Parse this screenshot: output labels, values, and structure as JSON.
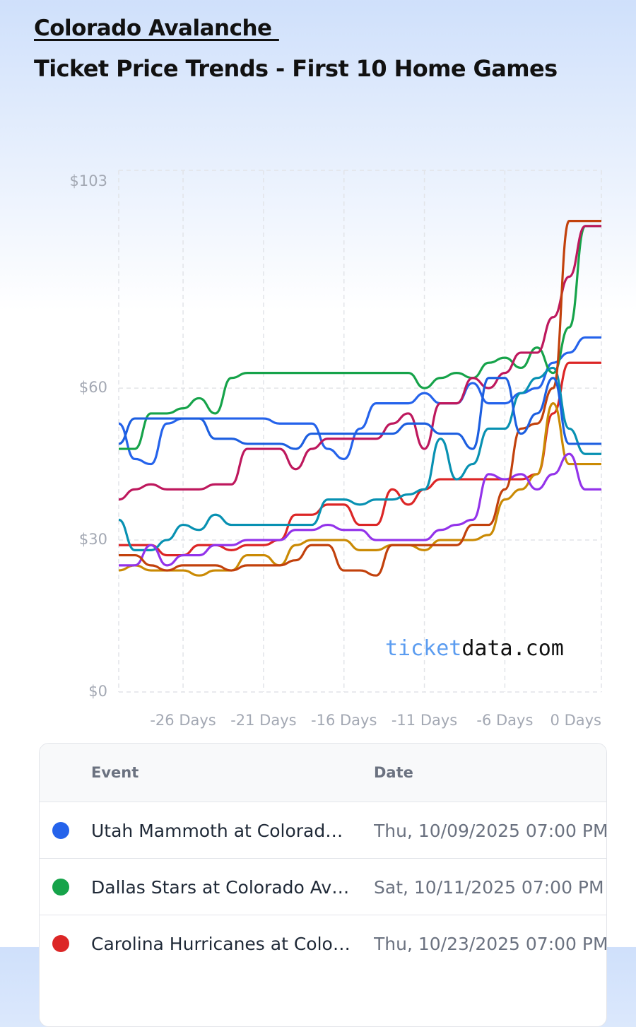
{
  "header": {
    "team": "Colorado Avalanche ",
    "subtitle": "Ticket Price Trends - First 10 Home Games"
  },
  "chart_data": {
    "type": "line",
    "watermark": [
      "ticket",
      "data.com"
    ],
    "x": [
      -30,
      -29,
      -28,
      -27,
      -26,
      -25,
      -24,
      -23,
      -22,
      -21,
      -20,
      -19,
      -18,
      -17,
      -16,
      -15,
      -14,
      -13,
      -12,
      -11,
      -10,
      -9,
      -8,
      -7,
      -6,
      -5,
      -4,
      -3,
      -2,
      -1,
      0
    ],
    "xlim": [
      -30,
      0
    ],
    "xticks": [
      {
        "value": -26,
        "label": "-26 Days"
      },
      {
        "value": -21,
        "label": "-21 Days"
      },
      {
        "value": -16,
        "label": "-16 Days"
      },
      {
        "value": -11,
        "label": "-11 Days"
      },
      {
        "value": -6,
        "label": "-6 Days"
      },
      {
        "value": 0,
        "label": "0 Days"
      }
    ],
    "ylim": [
      0,
      103
    ],
    "yticks": [
      {
        "value": 0,
        "label": "$0"
      },
      {
        "value": 30,
        "label": "$30"
      },
      {
        "value": 60,
        "label": "$60"
      },
      {
        "value": 103,
        "label": "$103"
      }
    ],
    "grid": true,
    "series": [
      {
        "name": "Utah Mammoth at Colorad…",
        "color": "#2563eb",
        "values": [
          53,
          46,
          45,
          53,
          54,
          54,
          54,
          54,
          54,
          54,
          53,
          53,
          53,
          48,
          46,
          52,
          57,
          57,
          57,
          59,
          57,
          57,
          61,
          57,
          57,
          59,
          60,
          65,
          67,
          70,
          70
        ]
      },
      {
        "name": "Dallas Stars at Colorado Av…",
        "color": "#16a34a",
        "values": [
          48,
          48,
          55,
          55,
          56,
          58,
          55,
          62,
          63,
          63,
          63,
          63,
          63,
          63,
          63,
          63,
          63,
          63,
          63,
          60,
          62,
          63,
          62,
          65,
          66,
          64,
          68,
          63,
          72,
          92,
          92
        ]
      },
      {
        "name": "Carolina Hurricanes at Colo…",
        "color": "#dc2626",
        "values": [
          29,
          29,
          29,
          27,
          27,
          29,
          29,
          28,
          29,
          29,
          30,
          35,
          35,
          37,
          37,
          33,
          33,
          40,
          37,
          40,
          42,
          42,
          42,
          42,
          42,
          42,
          43,
          55,
          65,
          65,
          65
        ]
      },
      {
        "color": "#be185d",
        "values": [
          38,
          40,
          41,
          40,
          40,
          40,
          41,
          41,
          48,
          48,
          48,
          44,
          48,
          50,
          50,
          50,
          50,
          53,
          55,
          48,
          57,
          57,
          62,
          60,
          63,
          67,
          67,
          74,
          82,
          92,
          92
        ]
      },
      {
        "color": "#0891b2",
        "values": [
          34,
          28,
          28,
          30,
          33,
          32,
          35,
          33,
          33,
          33,
          33,
          33,
          33,
          38,
          38,
          37,
          38,
          38,
          39,
          40,
          50,
          42,
          45,
          52,
          52,
          59,
          62,
          64,
          52,
          47,
          47
        ]
      },
      {
        "color": "#ca8a04",
        "values": [
          24,
          25,
          24,
          24,
          24,
          23,
          24,
          24,
          27,
          27,
          25,
          29,
          30,
          30,
          30,
          28,
          28,
          29,
          29,
          28,
          30,
          30,
          30,
          31,
          38,
          40,
          43,
          57,
          45,
          45,
          45
        ]
      },
      {
        "color": "#9333ea",
        "values": [
          25,
          25,
          29,
          25,
          27,
          27,
          29,
          29,
          30,
          30,
          30,
          32,
          32,
          33,
          32,
          32,
          30,
          30,
          30,
          30,
          32,
          33,
          34,
          43,
          42,
          43,
          40,
          43,
          47,
          40,
          40
        ]
      },
      {
        "color": "#c2410c",
        "values": [
          27,
          27,
          25,
          24,
          25,
          25,
          25,
          24,
          25,
          25,
          25,
          26,
          29,
          29,
          24,
          24,
          23,
          29,
          29,
          29,
          29,
          29,
          33,
          33,
          40,
          52,
          53,
          60,
          93,
          93,
          93
        ]
      },
      {
        "color": "#1d5fe0",
        "values": [
          49,
          54,
          54,
          54,
          54,
          54,
          50,
          50,
          49,
          49,
          49,
          48,
          51,
          51,
          51,
          51,
          51,
          51,
          53,
          53,
          51,
          51,
          48,
          62,
          62,
          51,
          55,
          62,
          49,
          49,
          49
        ]
      }
    ]
  },
  "table": {
    "columns": [
      "Event",
      "Date"
    ],
    "dates": [
      "Thu, 10/09/2025 07:00 PM",
      "Sat, 10/11/2025 07:00 PM",
      "Thu, 10/23/2025 07:00 PM"
    ]
  }
}
